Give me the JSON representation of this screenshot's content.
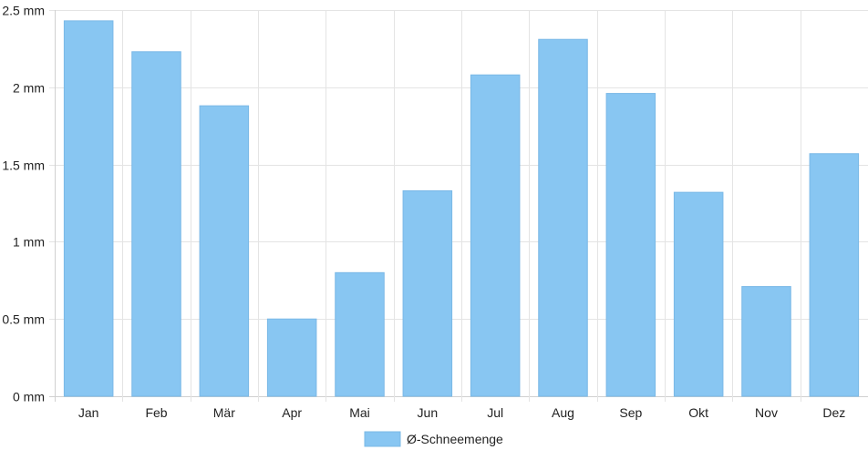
{
  "chart_data": {
    "type": "bar",
    "categories": [
      "Jan",
      "Feb",
      "Mär",
      "Apr",
      "Mai",
      "Jun",
      "Jul",
      "Aug",
      "Sep",
      "Okt",
      "Nov",
      "Dez"
    ],
    "series": [
      {
        "name": "Ø-Schneemenge",
        "values": [
          2.43,
          2.23,
          1.88,
          0.5,
          0.8,
          1.33,
          2.08,
          2.31,
          1.96,
          1.32,
          0.71,
          1.57
        ]
      }
    ],
    "y_ticks": [
      "0 mm",
      "0.5 mm",
      "1 mm",
      "1.5 mm",
      "2 mm",
      "2.5 mm"
    ],
    "y_tick_values": [
      0,
      0.5,
      1,
      1.5,
      2,
      2.5
    ],
    "ylim": [
      0,
      2.5
    ],
    "grid": true,
    "legend_position": "bottom",
    "colors": {
      "bar": "#88c6f2",
      "bar_border": "#7ab8e6"
    }
  }
}
